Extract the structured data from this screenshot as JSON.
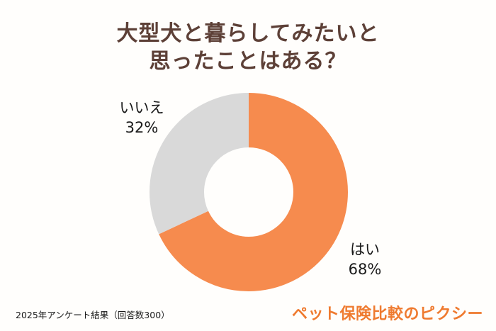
{
  "title": {
    "line1": "大型犬と暮らしてみたいと",
    "line2": "思ったことはある？"
  },
  "chart_data": {
    "type": "pie",
    "subtype": "donut",
    "title": "大型犬と暮らしてみたいと思ったことはある？",
    "start_angle": "top",
    "direction": "clockwise",
    "inner_radius_ratio": 0.45,
    "segments": [
      {
        "label": "はい",
        "value": 68,
        "display": "68%",
        "color": "#f68b4e"
      },
      {
        "label": "いいえ",
        "value": 32,
        "display": "32%",
        "color": "#d9d9d9"
      }
    ]
  },
  "footer": {
    "source": "2025年アンケート結果（回答数300）",
    "brand": "ペット保険比較のピクシー"
  },
  "colors": {
    "segment_yes": "#f68b4e",
    "segment_no": "#d9d9d9",
    "title_text": "#5d4037",
    "brand_text": "#ef7a2f",
    "background": "#fffefc",
    "label_text": "#1a1a1a"
  }
}
